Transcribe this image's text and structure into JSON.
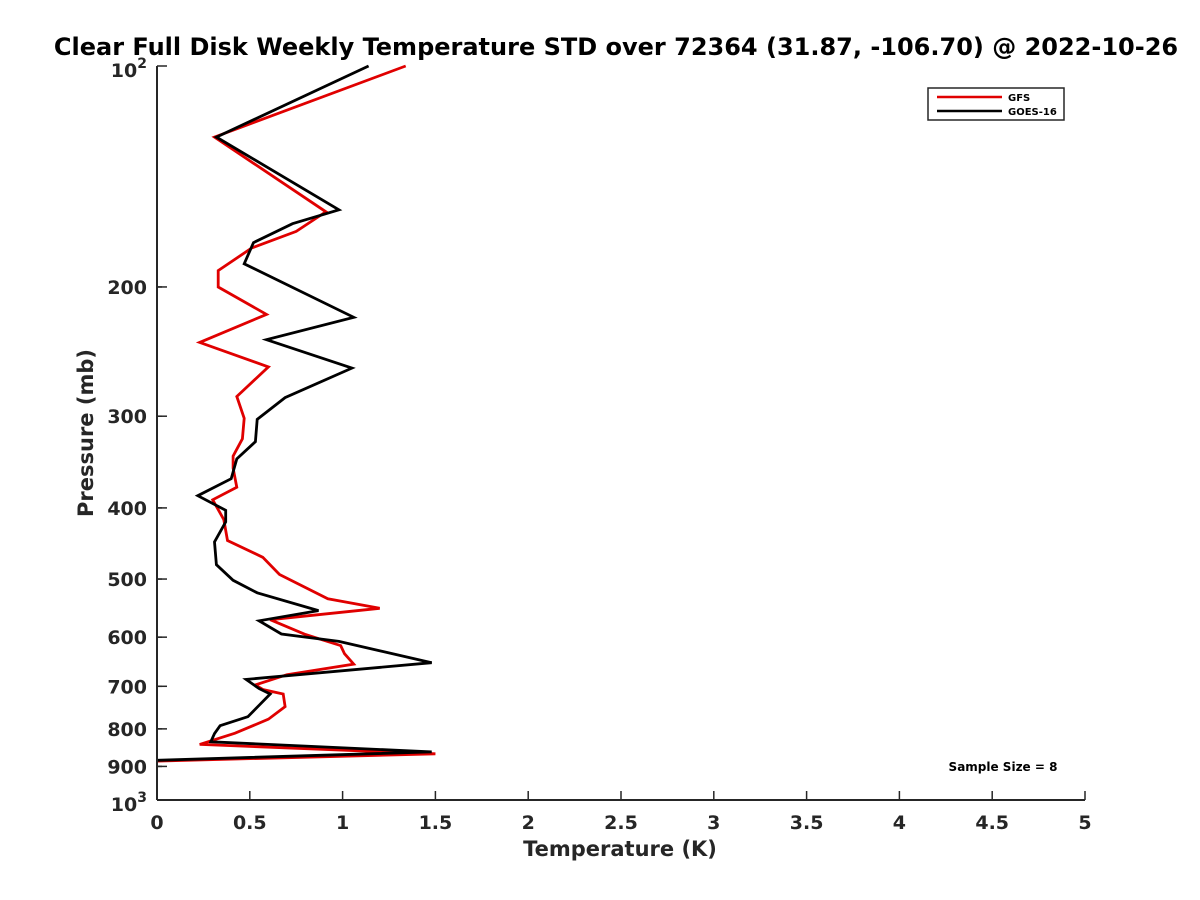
{
  "chart_data": {
    "type": "line",
    "title": "Clear Full Disk Weekly Temperature STD over 72364 (31.87, -106.70) @ 2022-10-26",
    "xlabel": "Temperature (K)",
    "ylabel": "Pressure (mb)",
    "xlim": [
      0,
      5
    ],
    "ylim": [
      100,
      1000
    ],
    "yscale": "log",
    "y_reversed": true,
    "x_ticks": [
      "0",
      "0.5",
      "1",
      "1.5",
      "2",
      "2.5",
      "3",
      "3.5",
      "4",
      "4.5",
      "5"
    ],
    "x_tick_values": [
      0,
      0.5,
      1,
      1.5,
      2,
      2.5,
      3,
      3.5,
      4,
      4.5,
      5
    ],
    "y_ticks": [
      {
        "value": 100,
        "base": "10",
        "exp": "2"
      },
      {
        "value": 200,
        "label": "200"
      },
      {
        "value": 300,
        "label": "300"
      },
      {
        "value": 400,
        "label": "400"
      },
      {
        "value": 500,
        "label": "500"
      },
      {
        "value": 600,
        "label": "600"
      },
      {
        "value": 700,
        "label": "700"
      },
      {
        "value": 800,
        "label": "800"
      },
      {
        "value": 900,
        "label": "900"
      },
      {
        "value": 1000,
        "base": "10",
        "exp": "3"
      }
    ],
    "legend": {
      "position": "top-right"
    },
    "annotation": "Sample Size = 8",
    "series": [
      {
        "name": "GFS",
        "color": "#e00000",
        "points": [
          [
            1.34,
            100
          ],
          [
            0.31,
            125
          ],
          [
            0.91,
            158
          ],
          [
            0.75,
            168
          ],
          [
            0.51,
            177
          ],
          [
            0.33,
            190
          ],
          [
            0.33,
            200
          ],
          [
            0.59,
            218
          ],
          [
            0.23,
            238
          ],
          [
            0.6,
            257
          ],
          [
            0.43,
            282
          ],
          [
            0.47,
            302
          ],
          [
            0.46,
            322
          ],
          [
            0.41,
            340
          ],
          [
            0.41,
            353
          ],
          [
            0.43,
            375
          ],
          [
            0.3,
            390
          ],
          [
            0.36,
            415
          ],
          [
            0.38,
            443
          ],
          [
            0.57,
            467
          ],
          [
            0.66,
            493
          ],
          [
            0.92,
            532
          ],
          [
            1.2,
            548
          ],
          [
            0.61,
            568
          ],
          [
            0.8,
            595
          ],
          [
            0.99,
            616
          ],
          [
            1.01,
            632
          ],
          [
            1.06,
            653
          ],
          [
            0.7,
            675
          ],
          [
            0.53,
            697
          ],
          [
            0.57,
            707
          ],
          [
            0.68,
            717
          ],
          [
            0.69,
            746
          ],
          [
            0.6,
            776
          ],
          [
            0.42,
            811
          ],
          [
            0.23,
            840
          ],
          [
            1.5,
            865
          ],
          [
            0.0,
            885
          ]
        ]
      },
      {
        "name": "GOES-16",
        "color": "#000000",
        "points": [
          [
            1.14,
            100
          ],
          [
            0.32,
            125
          ],
          [
            0.98,
            157
          ],
          [
            0.73,
            164
          ],
          [
            0.52,
            174
          ],
          [
            0.47,
            186
          ],
          [
            1.06,
            220
          ],
          [
            0.59,
            236
          ],
          [
            1.05,
            258
          ],
          [
            0.69,
            283
          ],
          [
            0.54,
            303
          ],
          [
            0.53,
            325
          ],
          [
            0.43,
            343
          ],
          [
            0.4,
            365
          ],
          [
            0.22,
            385
          ],
          [
            0.37,
            403
          ],
          [
            0.37,
            418
          ],
          [
            0.31,
            445
          ],
          [
            0.32,
            478
          ],
          [
            0.41,
            502
          ],
          [
            0.54,
            522
          ],
          [
            0.87,
            552
          ],
          [
            0.55,
            570
          ],
          [
            0.67,
            594
          ],
          [
            0.98,
            608
          ],
          [
            1.48,
            650
          ],
          [
            0.48,
            685
          ],
          [
            0.55,
            705
          ],
          [
            0.61,
            717
          ],
          [
            0.55,
            743
          ],
          [
            0.49,
            770
          ],
          [
            0.34,
            792
          ],
          [
            0.31,
            812
          ],
          [
            0.29,
            833
          ],
          [
            1.48,
            860
          ],
          [
            0.0,
            883
          ]
        ]
      }
    ]
  }
}
